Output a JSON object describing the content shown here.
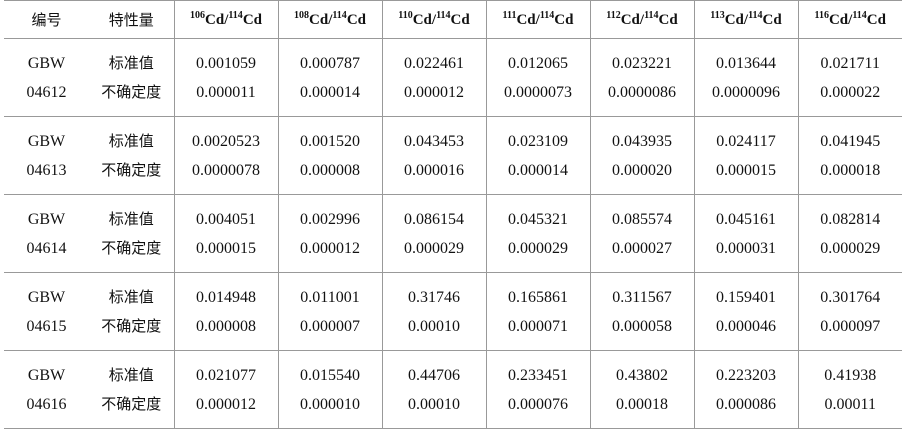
{
  "table": {
    "header": {
      "id": "编号",
      "property": "特性量",
      "ratios": [
        {
          "num_mass": "106",
          "num_el": "Cd",
          "sep": "/",
          "den_mass": "114",
          "den_el": "Cd"
        },
        {
          "num_mass": "108",
          "num_el": "Cd",
          "sep": "/",
          "den_mass": "114",
          "den_el": "Cd"
        },
        {
          "num_mass": "110",
          "num_el": "Cd",
          "sep": "/",
          "den_mass": "114",
          "den_el": "Cd"
        },
        {
          "num_mass": "111",
          "num_el": "Cd",
          "sep": "/",
          "den_mass": "114",
          "den_el": "Cd"
        },
        {
          "num_mass": "112",
          "num_el": "Cd",
          "sep": "/",
          "den_mass": "114",
          "den_el": "Cd"
        },
        {
          "num_mass": "113",
          "num_el": "Cd",
          "sep": "/",
          "den_mass": "114",
          "den_el": "Cd"
        },
        {
          "num_mass": "116",
          "num_el": "Cd",
          "sep": "/",
          "den_mass": "114",
          "den_el": "Cd"
        }
      ]
    },
    "groups": [
      {
        "id": [
          "GBW",
          "04612"
        ],
        "properties": [
          "标准值",
          "不确定度"
        ],
        "values": [
          [
            "0.001059",
            "0.000787",
            "0.022461",
            "0.012065",
            "0.023221",
            "0.013644",
            "0.021711"
          ],
          [
            "0.000011",
            "0.000014",
            "0.000012",
            "0.0000073",
            "0.0000086",
            "0.0000096",
            "0.000022"
          ]
        ]
      },
      {
        "id": [
          "GBW",
          "04613"
        ],
        "properties": [
          "标准值",
          "不确定度"
        ],
        "values": [
          [
            "0.0020523",
            "0.001520",
            "0.043453",
            "0.023109",
            "0.043935",
            "0.024117",
            "0.041945"
          ],
          [
            "0.0000078",
            "0.000008",
            "0.000016",
            "0.000014",
            "0.000020",
            "0.000015",
            "0.000018"
          ]
        ]
      },
      {
        "id": [
          "GBW",
          "04614"
        ],
        "properties": [
          "标准值",
          "不确定度"
        ],
        "values": [
          [
            "0.004051",
            "0.002996",
            "0.086154",
            "0.045321",
            "0.085574",
            "0.045161",
            "0.082814"
          ],
          [
            "0.000015",
            "0.000012",
            "0.000029",
            "0.000029",
            "0.000027",
            "0.000031",
            "0.000029"
          ]
        ]
      },
      {
        "id": [
          "GBW",
          "04615"
        ],
        "properties": [
          "标准值",
          "不确定度"
        ],
        "values": [
          [
            "0.014948",
            "0.011001",
            "0.31746",
            "0.165861",
            "0.311567",
            "0.159401",
            "0.301764"
          ],
          [
            "0.000008",
            "0.000007",
            "0.00010",
            "0.000071",
            "0.000058",
            "0.000046",
            "0.000097"
          ]
        ]
      },
      {
        "id": [
          "GBW",
          "04616"
        ],
        "properties": [
          "标准值",
          "不确定度"
        ],
        "values": [
          [
            "0.021077",
            "0.015540",
            "0.44706",
            "0.233451",
            "0.43802",
            "0.223203",
            "0.41938"
          ],
          [
            "0.000012",
            "0.000010",
            "0.00010",
            "0.000076",
            "0.00018",
            "0.000086",
            "0.00011"
          ]
        ]
      }
    ]
  }
}
